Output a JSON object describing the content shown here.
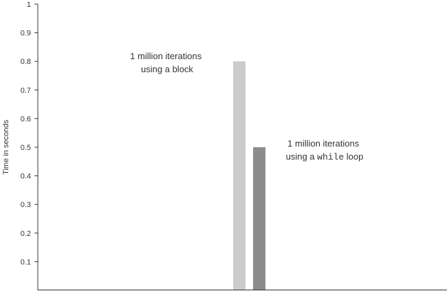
{
  "chart_data": {
    "type": "bar",
    "ylabel": "Time in seconds",
    "xlabel": "",
    "ylim": [
      0,
      1
    ],
    "yticks": [
      0.1,
      0.2,
      0.3,
      0.4,
      0.5,
      0.6,
      0.7,
      0.8,
      0.9,
      1
    ],
    "grid": false,
    "series": [
      {
        "values": [
          0.8
        ],
        "color": "#cccccc",
        "annotation": {
          "line1": "1 million iterations",
          "line2": "using a block"
        }
      },
      {
        "values": [
          0.5
        ],
        "color": "#8c8c8c",
        "annotation": {
          "line1": "1 million iterations",
          "line2_prefix": "using a ",
          "line2_code": "while",
          "line2_suffix": " loop"
        }
      }
    ]
  }
}
